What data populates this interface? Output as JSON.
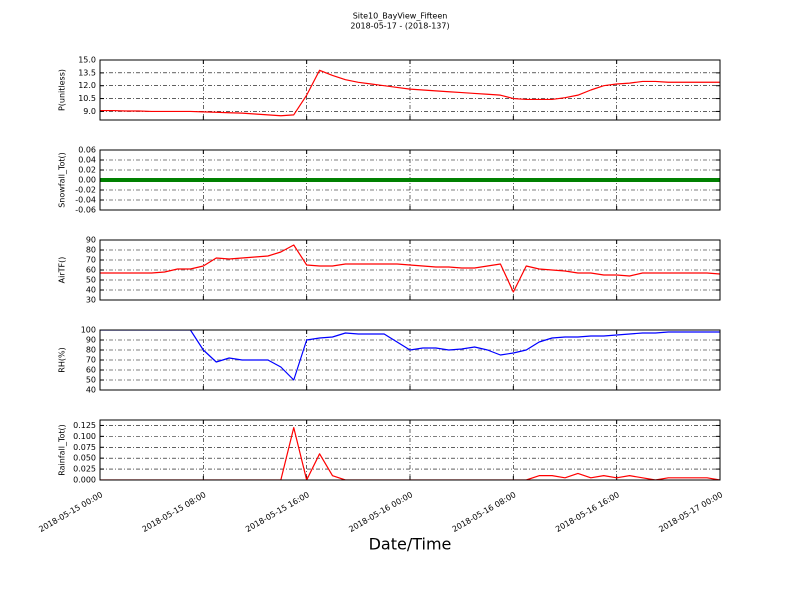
{
  "chart_data": [
    {
      "type": "line",
      "title": "Site10_BayView_Fifteen",
      "subtitle": "2018-05-17 - (2018-137)",
      "ylabel": "P(unitless)",
      "color": "#ff0000",
      "grid": true,
      "xlim": [
        "2018-05-15 00:00",
        "2018-05-17 00:00"
      ],
      "xticks": [
        "2018-05-15 00:00",
        "2018-05-15 08:00",
        "2018-05-15 16:00",
        "2018-05-16 00:00",
        "2018-05-16 08:00",
        "2018-05-16 16:00",
        "2018-05-17 00:00"
      ],
      "ylim": [
        8,
        15
      ],
      "yticks": [
        {
          "value": 9,
          "label": "9.0"
        },
        10.5,
        {
          "value": 12,
          "label": "12.0"
        },
        13.5,
        {
          "value": 15,
          "label": "15.0"
        }
      ],
      "x": [
        "2018-05-15 00:00",
        "2018-05-15 01:00",
        "2018-05-15 02:00",
        "2018-05-15 03:00",
        "2018-05-15 04:00",
        "2018-05-15 05:00",
        "2018-05-15 06:00",
        "2018-05-15 07:00",
        "2018-05-15 08:00",
        "2018-05-15 09:00",
        "2018-05-15 10:00",
        "2018-05-15 11:00",
        "2018-05-15 12:00",
        "2018-05-15 13:00",
        "2018-05-15 14:00",
        "2018-05-15 15:00",
        "2018-05-15 16:00",
        "2018-05-15 17:00",
        "2018-05-15 18:00",
        "2018-05-15 19:00",
        "2018-05-15 20:00",
        "2018-05-15 21:00",
        "2018-05-15 22:00",
        "2018-05-15 23:00",
        "2018-05-16 00:00",
        "2018-05-16 01:00",
        "2018-05-16 02:00",
        "2018-05-16 03:00",
        "2018-05-16 04:00",
        "2018-05-16 05:00",
        "2018-05-16 06:00",
        "2018-05-16 07:00",
        "2018-05-16 08:00",
        "2018-05-16 09:00",
        "2018-05-16 10:00",
        "2018-05-16 11:00",
        "2018-05-16 12:00",
        "2018-05-16 13:00",
        "2018-05-16 14:00",
        "2018-05-16 15:00",
        "2018-05-16 16:00",
        "2018-05-16 17:00",
        "2018-05-16 18:00",
        "2018-05-16 19:00",
        "2018-05-16 20:00",
        "2018-05-16 21:00",
        "2018-05-16 22:00",
        "2018-05-16 23:00",
        "2018-05-17 00:00"
      ],
      "values": [
        9.1,
        9.1,
        9.05,
        9.05,
        9.0,
        9.0,
        9.0,
        9.0,
        8.95,
        8.9,
        8.85,
        8.8,
        8.7,
        8.6,
        8.5,
        8.6,
        10.9,
        13.8,
        13.2,
        12.7,
        12.4,
        12.2,
        12.0,
        11.8,
        11.6,
        11.5,
        11.4,
        11.3,
        11.2,
        11.1,
        11.0,
        10.9,
        10.5,
        10.4,
        10.4,
        10.4,
        10.6,
        10.9,
        11.5,
        12.0,
        12.2,
        12.3,
        12.5,
        12.5,
        12.4,
        12.4,
        12.4,
        12.4,
        12.4
      ]
    },
    {
      "type": "line",
      "ylabel": "Snowfall_Tot()",
      "color": "#008000",
      "grid": true,
      "xlim": [
        "2018-05-15 00:00",
        "2018-05-17 00:00"
      ],
      "xticks": [
        "2018-05-15 00:00",
        "2018-05-15 08:00",
        "2018-05-15 16:00",
        "2018-05-16 00:00",
        "2018-05-16 08:00",
        "2018-05-16 16:00",
        "2018-05-17 00:00"
      ],
      "ylim": [
        -0.06,
        0.06
      ],
      "yticks": [
        -0.06,
        -0.04,
        -0.02,
        {
          "value": 0,
          "label": "0.00"
        },
        0.02,
        0.04,
        0.06
      ],
      "x": [
        "2018-05-15 00:00",
        "2018-05-15 01:00",
        "2018-05-15 02:00",
        "2018-05-15 03:00",
        "2018-05-15 04:00",
        "2018-05-15 05:00",
        "2018-05-15 06:00",
        "2018-05-15 07:00",
        "2018-05-15 08:00",
        "2018-05-15 09:00",
        "2018-05-15 10:00",
        "2018-05-15 11:00",
        "2018-05-15 12:00",
        "2018-05-15 13:00",
        "2018-05-15 14:00",
        "2018-05-15 15:00",
        "2018-05-15 16:00",
        "2018-05-15 17:00",
        "2018-05-15 18:00",
        "2018-05-15 19:00",
        "2018-05-15 20:00",
        "2018-05-15 21:00",
        "2018-05-15 22:00",
        "2018-05-15 23:00",
        "2018-05-16 00:00",
        "2018-05-16 01:00",
        "2018-05-16 02:00",
        "2018-05-16 03:00",
        "2018-05-16 04:00",
        "2018-05-16 05:00",
        "2018-05-16 06:00",
        "2018-05-16 07:00",
        "2018-05-16 08:00",
        "2018-05-16 09:00",
        "2018-05-16 10:00",
        "2018-05-16 11:00",
        "2018-05-16 12:00",
        "2018-05-16 13:00",
        "2018-05-16 14:00",
        "2018-05-16 15:00",
        "2018-05-16 16:00",
        "2018-05-16 17:00",
        "2018-05-16 18:00",
        "2018-05-16 19:00",
        "2018-05-16 20:00",
        "2018-05-16 21:00",
        "2018-05-16 22:00",
        "2018-05-16 23:00",
        "2018-05-17 00:00"
      ],
      "values": [
        0,
        0,
        0,
        0,
        0,
        0,
        0,
        0,
        0,
        0,
        0,
        0,
        0,
        0,
        0,
        0,
        0,
        0,
        0,
        0,
        0,
        0,
        0,
        0,
        0,
        0,
        0,
        0,
        0,
        0,
        0,
        0,
        0,
        0,
        0,
        0,
        0,
        0,
        0,
        0,
        0,
        0,
        0,
        0,
        0,
        0,
        0,
        0,
        0
      ]
    },
    {
      "type": "line",
      "ylabel": "AirTF()",
      "color": "#ff0000",
      "grid": true,
      "xlim": [
        "2018-05-15 00:00",
        "2018-05-17 00:00"
      ],
      "xticks": [
        "2018-05-15 00:00",
        "2018-05-15 08:00",
        "2018-05-15 16:00",
        "2018-05-16 00:00",
        "2018-05-16 08:00",
        "2018-05-16 16:00",
        "2018-05-17 00:00"
      ],
      "ylim": [
        30,
        90
      ],
      "yticks": [
        30,
        40,
        50,
        60,
        70,
        80,
        90
      ],
      "x": [
        "2018-05-15 00:00",
        "2018-05-15 01:00",
        "2018-05-15 02:00",
        "2018-05-15 03:00",
        "2018-05-15 04:00",
        "2018-05-15 05:00",
        "2018-05-15 06:00",
        "2018-05-15 07:00",
        "2018-05-15 08:00",
        "2018-05-15 09:00",
        "2018-05-15 10:00",
        "2018-05-15 11:00",
        "2018-05-15 12:00",
        "2018-05-15 13:00",
        "2018-05-15 14:00",
        "2018-05-15 15:00",
        "2018-05-15 16:00",
        "2018-05-15 17:00",
        "2018-05-15 18:00",
        "2018-05-15 19:00",
        "2018-05-15 20:00",
        "2018-05-15 21:00",
        "2018-05-15 22:00",
        "2018-05-15 23:00",
        "2018-05-16 00:00",
        "2018-05-16 01:00",
        "2018-05-16 02:00",
        "2018-05-16 03:00",
        "2018-05-16 04:00",
        "2018-05-16 05:00",
        "2018-05-16 06:00",
        "2018-05-16 07:00",
        "2018-05-16 08:00",
        "2018-05-16 09:00",
        "2018-05-16 10:00",
        "2018-05-16 11:00",
        "2018-05-16 12:00",
        "2018-05-16 13:00",
        "2018-05-16 14:00",
        "2018-05-16 15:00",
        "2018-05-16 16:00",
        "2018-05-16 17:00",
        "2018-05-16 18:00",
        "2018-05-16 19:00",
        "2018-05-16 20:00",
        "2018-05-16 21:00",
        "2018-05-16 22:00",
        "2018-05-16 23:00",
        "2018-05-17 00:00"
      ],
      "values": [
        57,
        57,
        57,
        57,
        57,
        58,
        61,
        61,
        64,
        72,
        71,
        72,
        73,
        74,
        78,
        85,
        65,
        64,
        64,
        66,
        66,
        66,
        66,
        66,
        65,
        64,
        63,
        63,
        62,
        62,
        64,
        66,
        38,
        64,
        61,
        60,
        59,
        57,
        57,
        55,
        55,
        54,
        57,
        57,
        57,
        57,
        57,
        57,
        56
      ]
    },
    {
      "type": "line",
      "ylabel": "RH(%)",
      "color": "#0000ff",
      "grid": true,
      "xlim": [
        "2018-05-15 00:00",
        "2018-05-17 00:00"
      ],
      "xticks": [
        "2018-05-15 00:00",
        "2018-05-15 08:00",
        "2018-05-15 16:00",
        "2018-05-16 00:00",
        "2018-05-16 08:00",
        "2018-05-16 16:00",
        "2018-05-17 00:00"
      ],
      "ylim": [
        40,
        100
      ],
      "yticks": [
        40,
        50,
        60,
        70,
        80,
        90,
        100
      ],
      "x": [
        "2018-05-15 00:00",
        "2018-05-15 01:00",
        "2018-05-15 02:00",
        "2018-05-15 03:00",
        "2018-05-15 04:00",
        "2018-05-15 05:00",
        "2018-05-15 06:00",
        "2018-05-15 07:00",
        "2018-05-15 08:00",
        "2018-05-15 09:00",
        "2018-05-15 10:00",
        "2018-05-15 11:00",
        "2018-05-15 12:00",
        "2018-05-15 13:00",
        "2018-05-15 14:00",
        "2018-05-15 15:00",
        "2018-05-15 16:00",
        "2018-05-15 17:00",
        "2018-05-15 18:00",
        "2018-05-15 19:00",
        "2018-05-15 20:00",
        "2018-05-15 21:00",
        "2018-05-15 22:00",
        "2018-05-15 23:00",
        "2018-05-16 00:00",
        "2018-05-16 01:00",
        "2018-05-16 02:00",
        "2018-05-16 03:00",
        "2018-05-16 04:00",
        "2018-05-16 05:00",
        "2018-05-16 06:00",
        "2018-05-16 07:00",
        "2018-05-16 08:00",
        "2018-05-16 09:00",
        "2018-05-16 10:00",
        "2018-05-16 11:00",
        "2018-05-16 12:00",
        "2018-05-16 13:00",
        "2018-05-16 14:00",
        "2018-05-16 15:00",
        "2018-05-16 16:00",
        "2018-05-16 17:00",
        "2018-05-16 18:00",
        "2018-05-16 19:00",
        "2018-05-16 20:00",
        "2018-05-16 21:00",
        "2018-05-16 22:00",
        "2018-05-16 23:00",
        "2018-05-17 00:00"
      ],
      "values": [
        100,
        100,
        100,
        100,
        100,
        100,
        100,
        100,
        80,
        68,
        72,
        70,
        70,
        70,
        63,
        50,
        90,
        92,
        93,
        97,
        96,
        96,
        96,
        88,
        80,
        82,
        82,
        80,
        81,
        83,
        80,
        75,
        77,
        80,
        88,
        92,
        93,
        93,
        94,
        94,
        95,
        96,
        97,
        97,
        98,
        98,
        98,
        98,
        98
      ]
    },
    {
      "type": "line",
      "ylabel": "Rainfall_Tot()",
      "xlabel": "Date/Time",
      "color": "#ff0000",
      "grid": true,
      "xlim": [
        "2018-05-15 00:00",
        "2018-05-17 00:00"
      ],
      "xticks": [
        "2018-05-15 00:00",
        "2018-05-15 08:00",
        "2018-05-15 16:00",
        "2018-05-16 00:00",
        "2018-05-16 08:00",
        "2018-05-16 16:00",
        "2018-05-17 00:00"
      ],
      "ylim": [
        0,
        0.1375
      ],
      "yticks": [
        {
          "value": 0,
          "label": "0.000"
        },
        0.025,
        {
          "value": 0.05,
          "label": "0.050"
        },
        0.075,
        {
          "value": 0.1,
          "label": "0.100"
        },
        0.125
      ],
      "x": [
        "2018-05-15 00:00",
        "2018-05-15 01:00",
        "2018-05-15 02:00",
        "2018-05-15 03:00",
        "2018-05-15 04:00",
        "2018-05-15 05:00",
        "2018-05-15 06:00",
        "2018-05-15 07:00",
        "2018-05-15 08:00",
        "2018-05-15 09:00",
        "2018-05-15 10:00",
        "2018-05-15 11:00",
        "2018-05-15 12:00",
        "2018-05-15 13:00",
        "2018-05-15 14:00",
        "2018-05-15 15:00",
        "2018-05-15 16:00",
        "2018-05-15 17:00",
        "2018-05-15 18:00",
        "2018-05-15 19:00",
        "2018-05-15 20:00",
        "2018-05-15 21:00",
        "2018-05-15 22:00",
        "2018-05-15 23:00",
        "2018-05-16 00:00",
        "2018-05-16 01:00",
        "2018-05-16 02:00",
        "2018-05-16 03:00",
        "2018-05-16 04:00",
        "2018-05-16 05:00",
        "2018-05-16 06:00",
        "2018-05-16 07:00",
        "2018-05-16 08:00",
        "2018-05-16 09:00",
        "2018-05-16 10:00",
        "2018-05-16 11:00",
        "2018-05-16 12:00",
        "2018-05-16 13:00",
        "2018-05-16 14:00",
        "2018-05-16 15:00",
        "2018-05-16 16:00",
        "2018-05-16 17:00",
        "2018-05-16 18:00",
        "2018-05-16 19:00",
        "2018-05-16 20:00",
        "2018-05-16 21:00",
        "2018-05-16 22:00",
        "2018-05-16 23:00",
        "2018-05-17 00:00"
      ],
      "values": [
        0,
        0,
        0,
        0,
        0,
        0,
        0,
        0,
        0,
        0,
        0,
        0,
        0,
        0,
        0,
        0.12,
        0,
        0.06,
        0.01,
        0,
        0,
        0,
        0,
        0,
        0,
        0,
        0,
        0,
        0,
        0,
        0,
        0,
        0,
        0,
        0.01,
        0.01,
        0.005,
        0.015,
        0.005,
        0.01,
        0.005,
        0.01,
        0.005,
        0,
        0.005,
        0.005,
        0.005,
        0.005,
        0
      ]
    }
  ]
}
